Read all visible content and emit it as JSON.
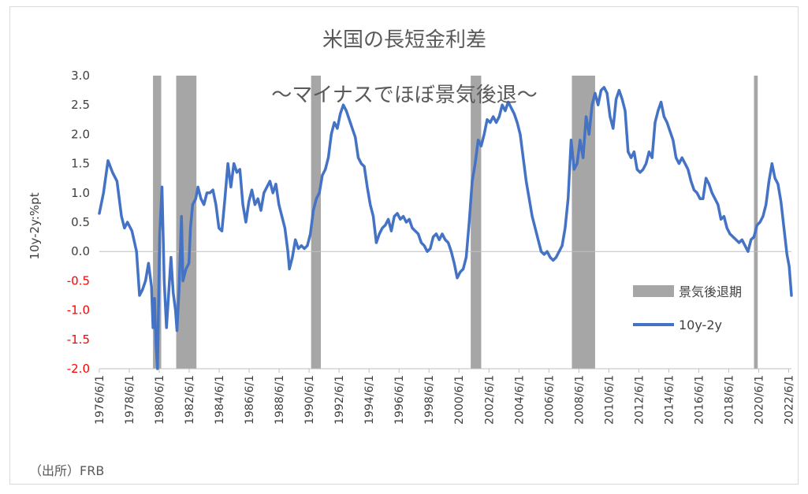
{
  "chart_data": {
    "type": "line",
    "title": "米国の長短金利差",
    "subtitle": "～マイナスでほぼ景気後退～",
    "ylabel": "10y-2y:%pt",
    "xlabel": "",
    "ylim": [
      -2.0,
      3.0
    ],
    "yticks": [
      "3.0",
      "2.5",
      "2.0",
      "1.5",
      "1.0",
      "0.5",
      "0.0",
      "-0.5",
      "-1.0",
      "-1.5",
      "-2.0"
    ],
    "negative_tick_color": "#ff0000",
    "xticks": [
      "1976/6/1",
      "1978/6/1",
      "1980/6/1",
      "1982/6/1",
      "1984/6/1",
      "1986/6/1",
      "1988/6/1",
      "1990/6/1",
      "1992/6/1",
      "1994/6/1",
      "1996/6/1",
      "1998/6/1",
      "2000/6/1",
      "2002/6/1",
      "2004/6/1",
      "2006/6/1",
      "2008/6/1",
      "2010/6/1",
      "2012/6/1",
      "2014/6/1",
      "2016/6/1",
      "2018/6/1",
      "2020/6/1",
      "2022/6/1"
    ],
    "xlim": [
      1976.42,
      2022.6
    ],
    "series": [
      {
        "name": "10y-2y",
        "color": "#4472c4",
        "points": [
          [
            1976.42,
            0.65
          ],
          [
            1976.7,
            1.0
          ],
          [
            1977.0,
            1.55
          ],
          [
            1977.3,
            1.35
          ],
          [
            1977.6,
            1.2
          ],
          [
            1977.9,
            0.6
          ],
          [
            1978.1,
            0.4
          ],
          [
            1978.3,
            0.5
          ],
          [
            1978.6,
            0.35
          ],
          [
            1978.9,
            0.0
          ],
          [
            1979.1,
            -0.75
          ],
          [
            1979.3,
            -0.65
          ],
          [
            1979.5,
            -0.5
          ],
          [
            1979.7,
            -0.2
          ],
          [
            1979.9,
            -0.6
          ],
          [
            1980.0,
            -1.3
          ],
          [
            1980.1,
            -0.8
          ],
          [
            1980.2,
            -1.6
          ],
          [
            1980.3,
            -2.0
          ],
          [
            1980.45,
            0.3
          ],
          [
            1980.6,
            1.1
          ],
          [
            1980.75,
            -0.5
          ],
          [
            1980.9,
            -1.3
          ],
          [
            1981.1,
            -0.5
          ],
          [
            1981.2,
            -0.1
          ],
          [
            1981.35,
            -0.7
          ],
          [
            1981.5,
            -1.0
          ],
          [
            1981.6,
            -1.35
          ],
          [
            1981.75,
            -0.6
          ],
          [
            1981.9,
            0.6
          ],
          [
            1982.0,
            -0.5
          ],
          [
            1982.2,
            -0.3
          ],
          [
            1982.4,
            -0.2
          ],
          [
            1982.5,
            0.4
          ],
          [
            1982.65,
            0.8
          ],
          [
            1982.85,
            0.9
          ],
          [
            1983.0,
            1.1
          ],
          [
            1983.2,
            0.9
          ],
          [
            1983.4,
            0.8
          ],
          [
            1983.6,
            1.0
          ],
          [
            1983.8,
            1.0
          ],
          [
            1984.0,
            1.05
          ],
          [
            1984.2,
            0.8
          ],
          [
            1984.4,
            0.4
          ],
          [
            1984.6,
            0.35
          ],
          [
            1984.8,
            0.9
          ],
          [
            1985.0,
            1.5
          ],
          [
            1985.2,
            1.1
          ],
          [
            1985.4,
            1.5
          ],
          [
            1985.6,
            1.35
          ],
          [
            1985.8,
            1.4
          ],
          [
            1986.0,
            0.8
          ],
          [
            1986.2,
            0.5
          ],
          [
            1986.4,
            0.85
          ],
          [
            1986.6,
            1.05
          ],
          [
            1986.8,
            0.8
          ],
          [
            1987.0,
            0.9
          ],
          [
            1987.2,
            0.7
          ],
          [
            1987.4,
            1.0
          ],
          [
            1987.6,
            1.1
          ],
          [
            1987.8,
            1.2
          ],
          [
            1988.0,
            1.0
          ],
          [
            1988.2,
            1.15
          ],
          [
            1988.4,
            0.8
          ],
          [
            1988.6,
            0.6
          ],
          [
            1988.8,
            0.4
          ],
          [
            1989.0,
            0.0
          ],
          [
            1989.1,
            -0.3
          ],
          [
            1989.3,
            -0.1
          ],
          [
            1989.5,
            0.2
          ],
          [
            1989.7,
            0.05
          ],
          [
            1989.9,
            0.1
          ],
          [
            1990.1,
            0.05
          ],
          [
            1990.3,
            0.1
          ],
          [
            1990.5,
            0.3
          ],
          [
            1990.7,
            0.7
          ],
          [
            1990.9,
            0.9
          ],
          [
            1991.1,
            1.0
          ],
          [
            1991.3,
            1.3
          ],
          [
            1991.5,
            1.4
          ],
          [
            1991.7,
            1.6
          ],
          [
            1991.9,
            2.0
          ],
          [
            1992.1,
            2.2
          ],
          [
            1992.3,
            2.1
          ],
          [
            1992.5,
            2.35
          ],
          [
            1992.7,
            2.5
          ],
          [
            1992.9,
            2.4
          ],
          [
            1993.1,
            2.25
          ],
          [
            1993.3,
            2.1
          ],
          [
            1993.5,
            1.95
          ],
          [
            1993.7,
            1.6
          ],
          [
            1993.9,
            1.5
          ],
          [
            1994.1,
            1.45
          ],
          [
            1994.3,
            1.1
          ],
          [
            1994.5,
            0.8
          ],
          [
            1994.7,
            0.6
          ],
          [
            1994.9,
            0.15
          ],
          [
            1995.1,
            0.3
          ],
          [
            1995.3,
            0.4
          ],
          [
            1995.5,
            0.45
          ],
          [
            1995.7,
            0.55
          ],
          [
            1995.9,
            0.35
          ],
          [
            1996.1,
            0.6
          ],
          [
            1996.3,
            0.65
          ],
          [
            1996.5,
            0.55
          ],
          [
            1996.7,
            0.6
          ],
          [
            1996.9,
            0.5
          ],
          [
            1997.1,
            0.55
          ],
          [
            1997.3,
            0.4
          ],
          [
            1997.5,
            0.35
          ],
          [
            1997.7,
            0.3
          ],
          [
            1997.9,
            0.15
          ],
          [
            1998.1,
            0.1
          ],
          [
            1998.3,
            0.0
          ],
          [
            1998.5,
            0.05
          ],
          [
            1998.7,
            0.25
          ],
          [
            1998.9,
            0.3
          ],
          [
            1999.1,
            0.2
          ],
          [
            1999.3,
            0.3
          ],
          [
            1999.5,
            0.2
          ],
          [
            1999.7,
            0.15
          ],
          [
            1999.9,
            0.0
          ],
          [
            2000.1,
            -0.2
          ],
          [
            2000.3,
            -0.45
          ],
          [
            2000.5,
            -0.35
          ],
          [
            2000.7,
            -0.3
          ],
          [
            2000.9,
            -0.1
          ],
          [
            2001.1,
            0.5
          ],
          [
            2001.3,
            1.2
          ],
          [
            2001.5,
            1.5
          ],
          [
            2001.7,
            1.9
          ],
          [
            2001.9,
            1.8
          ],
          [
            2002.1,
            2.0
          ],
          [
            2002.3,
            2.25
          ],
          [
            2002.5,
            2.2
          ],
          [
            2002.7,
            2.3
          ],
          [
            2002.9,
            2.2
          ],
          [
            2003.1,
            2.3
          ],
          [
            2003.3,
            2.5
          ],
          [
            2003.5,
            2.4
          ],
          [
            2003.7,
            2.55
          ],
          [
            2003.9,
            2.45
          ],
          [
            2004.1,
            2.35
          ],
          [
            2004.3,
            2.2
          ],
          [
            2004.5,
            2.0
          ],
          [
            2004.7,
            1.6
          ],
          [
            2004.9,
            1.2
          ],
          [
            2005.1,
            0.9
          ],
          [
            2005.3,
            0.6
          ],
          [
            2005.5,
            0.4
          ],
          [
            2005.7,
            0.2
          ],
          [
            2005.9,
            0.0
          ],
          [
            2006.1,
            -0.05
          ],
          [
            2006.3,
            0.0
          ],
          [
            2006.5,
            -0.1
          ],
          [
            2006.7,
            -0.15
          ],
          [
            2006.9,
            -0.1
          ],
          [
            2007.1,
            0.0
          ],
          [
            2007.3,
            0.1
          ],
          [
            2007.5,
            0.4
          ],
          [
            2007.7,
            0.9
          ],
          [
            2007.9,
            1.9
          ],
          [
            2008.1,
            1.4
          ],
          [
            2008.3,
            1.5
          ],
          [
            2008.5,
            1.9
          ],
          [
            2008.7,
            1.6
          ],
          [
            2008.9,
            2.3
          ],
          [
            2009.1,
            2.0
          ],
          [
            2009.3,
            2.5
          ],
          [
            2009.5,
            2.7
          ],
          [
            2009.7,
            2.5
          ],
          [
            2009.9,
            2.75
          ],
          [
            2010.1,
            2.8
          ],
          [
            2010.3,
            2.7
          ],
          [
            2010.5,
            2.3
          ],
          [
            2010.7,
            2.1
          ],
          [
            2010.9,
            2.6
          ],
          [
            2011.1,
            2.75
          ],
          [
            2011.3,
            2.6
          ],
          [
            2011.5,
            2.4
          ],
          [
            2011.7,
            1.7
          ],
          [
            2011.9,
            1.6
          ],
          [
            2012.1,
            1.7
          ],
          [
            2012.3,
            1.4
          ],
          [
            2012.5,
            1.35
          ],
          [
            2012.7,
            1.4
          ],
          [
            2012.9,
            1.5
          ],
          [
            2013.1,
            1.7
          ],
          [
            2013.3,
            1.6
          ],
          [
            2013.5,
            2.2
          ],
          [
            2013.7,
            2.4
          ],
          [
            2013.9,
            2.55
          ],
          [
            2014.1,
            2.3
          ],
          [
            2014.3,
            2.2
          ],
          [
            2014.5,
            2.05
          ],
          [
            2014.7,
            1.9
          ],
          [
            2014.9,
            1.6
          ],
          [
            2015.1,
            1.5
          ],
          [
            2015.3,
            1.6
          ],
          [
            2015.5,
            1.5
          ],
          [
            2015.7,
            1.4
          ],
          [
            2015.9,
            1.2
          ],
          [
            2016.1,
            1.05
          ],
          [
            2016.3,
            1.0
          ],
          [
            2016.5,
            0.9
          ],
          [
            2016.7,
            0.9
          ],
          [
            2016.9,
            1.25
          ],
          [
            2017.1,
            1.15
          ],
          [
            2017.3,
            1.0
          ],
          [
            2017.5,
            0.9
          ],
          [
            2017.7,
            0.8
          ],
          [
            2017.9,
            0.55
          ],
          [
            2018.1,
            0.6
          ],
          [
            2018.3,
            0.4
          ],
          [
            2018.5,
            0.3
          ],
          [
            2018.7,
            0.25
          ],
          [
            2018.9,
            0.2
          ],
          [
            2019.1,
            0.15
          ],
          [
            2019.3,
            0.2
          ],
          [
            2019.5,
            0.1
          ],
          [
            2019.7,
            0.0
          ],
          [
            2019.9,
            0.2
          ],
          [
            2020.1,
            0.25
          ],
          [
            2020.3,
            0.45
          ],
          [
            2020.5,
            0.5
          ],
          [
            2020.7,
            0.6
          ],
          [
            2020.9,
            0.8
          ],
          [
            2021.1,
            1.2
          ],
          [
            2021.3,
            1.5
          ],
          [
            2021.5,
            1.25
          ],
          [
            2021.7,
            1.15
          ],
          [
            2021.9,
            0.85
          ],
          [
            2022.1,
            0.4
          ],
          [
            2022.3,
            -0.05
          ],
          [
            2022.45,
            -0.25
          ],
          [
            2022.6,
            -0.75
          ]
        ]
      }
    ],
    "recession_periods": [
      [
        1980.0,
        1980.55
      ],
      [
        1981.55,
        1982.9
      ],
      [
        1990.55,
        1991.2
      ],
      [
        2001.2,
        2001.9
      ],
      [
        2007.95,
        2009.5
      ],
      [
        2020.1,
        2020.35
      ]
    ],
    "recession_color": "#a6a6a6",
    "legend": {
      "placement": "right",
      "entries": [
        {
          "label": "景気後退期",
          "type": "band"
        },
        {
          "label": "10y-2y",
          "type": "line"
        }
      ]
    },
    "grid": false
  },
  "source": "（出所）FRB"
}
